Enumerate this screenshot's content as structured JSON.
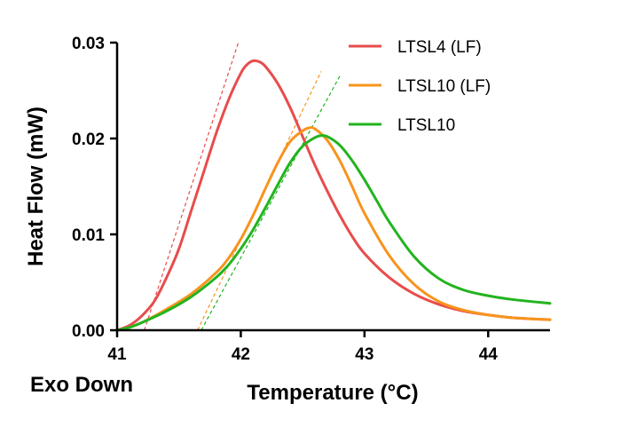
{
  "chart_data": {
    "type": "line",
    "title": "",
    "xlabel": "Temperature (°C)",
    "ylabel": "Heat Flow (mW)",
    "xlim": [
      41,
      44.5
    ],
    "ylim": [
      0,
      0.03
    ],
    "x_ticks": [
      41,
      42,
      43,
      44
    ],
    "x_tick_labels": [
      "41",
      "42",
      "43",
      "44"
    ],
    "y_ticks": [
      0,
      0.01,
      0.02,
      0.03
    ],
    "y_tick_labels": [
      "0.00",
      "0.01",
      "0.02",
      "0.03"
    ],
    "grid": false,
    "legend_position": "top-right",
    "series": [
      {
        "name": "LTSL4 (LF)",
        "color": "#e84c4c",
        "x": [
          41.0,
          41.1,
          41.2,
          41.3,
          41.4,
          41.5,
          41.6,
          41.7,
          41.8,
          41.9,
          42.0,
          42.05,
          42.1,
          42.15,
          42.2,
          42.3,
          42.4,
          42.5,
          42.6,
          42.7,
          42.8,
          42.9,
          43.0,
          43.2,
          43.4,
          43.6,
          43.8,
          44.0,
          44.2,
          44.5
        ],
        "y": [
          0.0,
          0.0005,
          0.0015,
          0.003,
          0.0055,
          0.0085,
          0.0125,
          0.0165,
          0.0205,
          0.024,
          0.0268,
          0.0277,
          0.0281,
          0.028,
          0.0275,
          0.0257,
          0.0232,
          0.0202,
          0.0172,
          0.0145,
          0.012,
          0.0098,
          0.008,
          0.0055,
          0.0038,
          0.0027,
          0.002,
          0.0016,
          0.0013,
          0.0011
        ]
      },
      {
        "name": "LTSL10 (LF)",
        "color": "#f7941d",
        "x": [
          41.0,
          41.1,
          41.2,
          41.4,
          41.6,
          41.8,
          41.9,
          42.0,
          42.1,
          42.2,
          42.3,
          42.4,
          42.5,
          42.55,
          42.6,
          42.7,
          42.8,
          42.9,
          43.0,
          43.2,
          43.4,
          43.6,
          43.8,
          44.0,
          44.2,
          44.5
        ],
        "y": [
          0.0,
          0.0003,
          0.0008,
          0.0022,
          0.0038,
          0.006,
          0.0075,
          0.0095,
          0.012,
          0.0148,
          0.0175,
          0.0197,
          0.0208,
          0.0211,
          0.021,
          0.0198,
          0.0177,
          0.015,
          0.0122,
          0.0078,
          0.0048,
          0.003,
          0.0021,
          0.0016,
          0.0013,
          0.0011
        ]
      },
      {
        "name": "LTSL10",
        "color": "#22b41e",
        "x": [
          41.0,
          41.1,
          41.2,
          41.4,
          41.6,
          41.8,
          41.9,
          42.0,
          42.1,
          42.2,
          42.3,
          42.4,
          42.5,
          42.6,
          42.65,
          42.7,
          42.8,
          42.9,
          43.0,
          43.1,
          43.2,
          43.4,
          43.6,
          43.8,
          44.0,
          44.2,
          44.5
        ],
        "y": [
          0.0,
          0.0003,
          0.0008,
          0.002,
          0.0035,
          0.0055,
          0.0068,
          0.0085,
          0.0105,
          0.0128,
          0.0152,
          0.0175,
          0.0192,
          0.0201,
          0.0203,
          0.0202,
          0.0193,
          0.0177,
          0.0157,
          0.0135,
          0.0113,
          0.0077,
          0.0054,
          0.0042,
          0.0036,
          0.0032,
          0.0028
        ]
      }
    ],
    "tangent_lines": [
      {
        "series": "LTSL4 (LF)",
        "color": "#e84c4c",
        "x": [
          41.22,
          41.98
        ],
        "y": [
          0.0,
          0.03
        ]
      },
      {
        "series": "LTSL10 (LF)",
        "color": "#f7941d",
        "x": [
          41.65,
          42.65
        ],
        "y": [
          0.0,
          0.027
        ]
      },
      {
        "series": "LTSL10",
        "color": "#22b41e",
        "x": [
          41.68,
          42.8
        ],
        "y": [
          0.0,
          0.0265
        ]
      }
    ]
  },
  "annotation": "Exo Down"
}
